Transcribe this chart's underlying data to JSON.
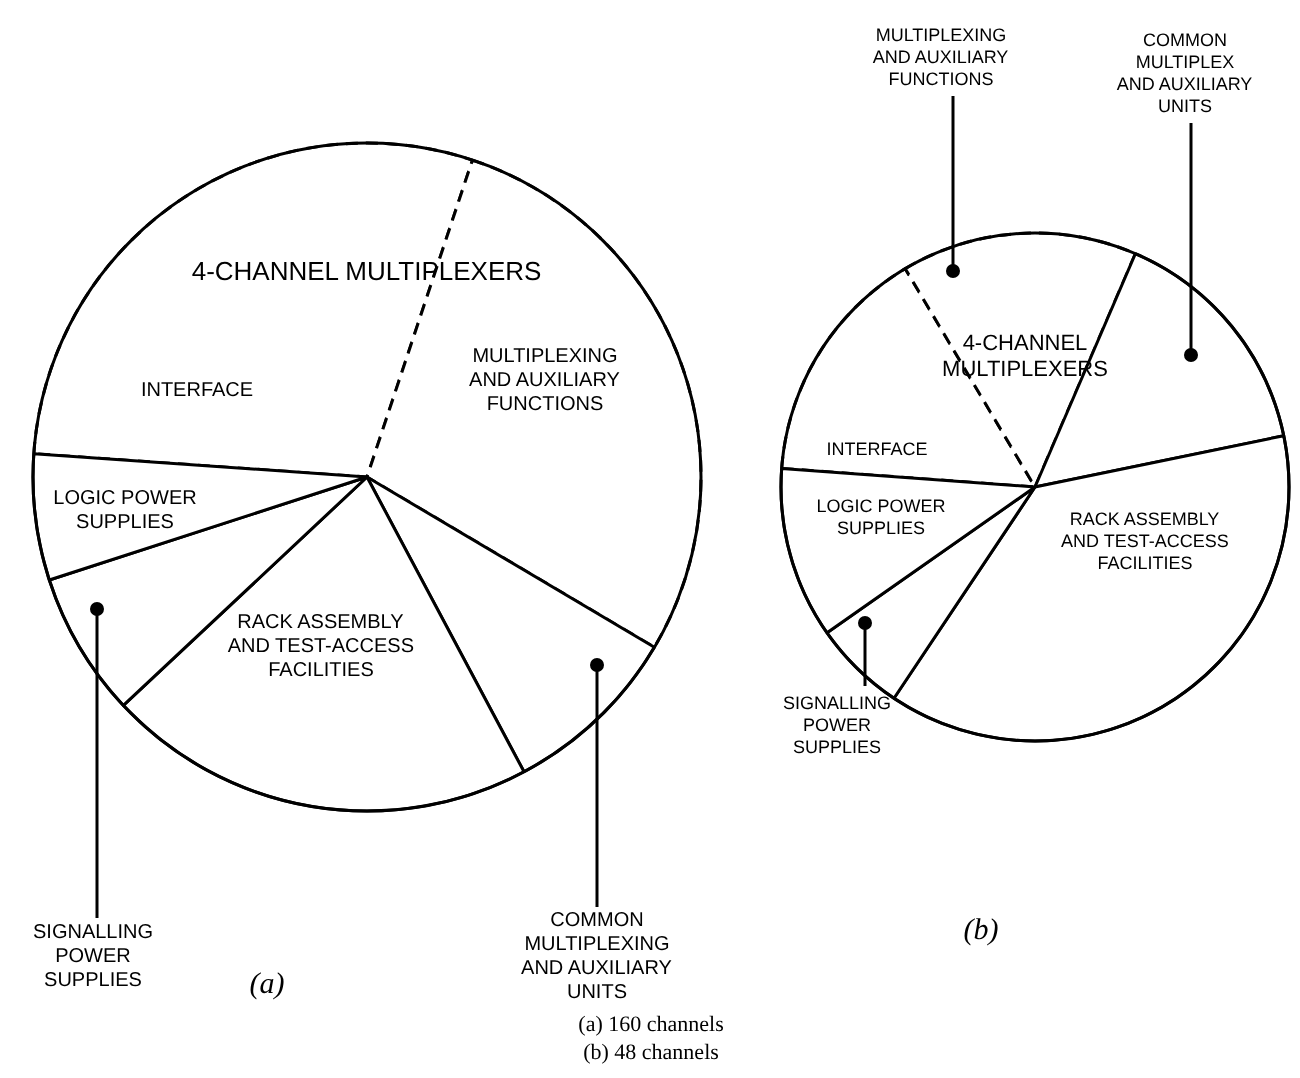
{
  "chart_data": [
    {
      "type": "pie",
      "title": "(a)",
      "categories": [
        "INTERFACE",
        "MULTIPLEXING AND AUXILIARY FUNCTIONS",
        "COMMON MULTIPLEXING AND AUXILIARY UNITS",
        "RACK ASSEMBLY AND TEST-ACCESS FACILITIES",
        "SIGNALLING POWER SUPPLIES",
        "LOGIC POWER SUPPLIES"
      ],
      "values": [
        29.0,
        28.4,
        8.7,
        20.8,
        7.0,
        6.1
      ],
      "colors": [
        "#ffffff",
        "#ffffff",
        "#ffffff",
        "#ffffff",
        "#ffffff",
        "#ffffff"
      ],
      "annotations": [
        "4-CHANNEL MULTIPLEXERS",
        "(a) 160 channels"
      ]
    },
    {
      "type": "pie",
      "title": "(b)",
      "categories": [
        "INTERFACE",
        "MULTIPLEXING AND AUXILIARY FUNCTIONS",
        "COMMON MULTIPLEX AND AUXILIARY UNITS",
        "RACK ASSEMBLY AND TEST-ACCESS FACILITIES",
        "SIGNALLING POWER SUPPLIES",
        "LOGIC POWER SUPPLIES"
      ],
      "values": [
        15.3,
        15.0,
        15.3,
        37.6,
        5.9,
        10.9
      ],
      "colors": [
        "#ffffff",
        "#ffffff",
        "#ffffff",
        "#ffffff",
        "#ffffff",
        "#ffffff"
      ],
      "annotations": [
        "4-CHANNEL MULTIPLEXERS",
        "(b) 48 channels"
      ]
    }
  ]
}
